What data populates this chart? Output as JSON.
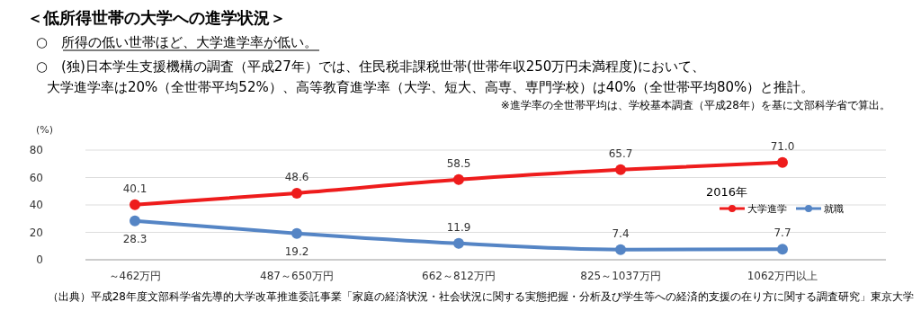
{
  "chart_data": {
    "type": "line",
    "title": "＜低所得世帯の大学への進学状況＞",
    "annotations": [
      "○　所得の低い世帯ほど、大学進学率が低い。",
      "○　(独)日本学生支援機構の調査（平成27年）では、住民税非課税世帯(世帯年収250万円未満程度)において、",
      "大学進学率は20%（全世帯平均52%）、高等教育進学率（大学、短大、高専、専門学校）は40%（全世帯平均80%）と推計。",
      "※進学率の全世帯平均は、学校基本調査（平成28年）を基に文部科学省で算出。",
      "（出典）平成28年度文部科学省先導的大学改革推進委託事業「家庭の経済状況・社会状況に関する実態把握・分析及び学生等への経済的支援の在り方に関する調査研究」東京大学"
    ],
    "ylabel": "(%)",
    "legend_title": "2016年",
    "legend": "right",
    "grid": "y",
    "marker": "circle",
    "line_style": "solid",
    "categories": [
      "～462万円",
      "487～650万円",
      "662～812万円",
      "825～1037万円",
      "1062万円以上"
    ],
    "ylim": [
      0,
      80
    ],
    "yticks": [
      0,
      20,
      40,
      60,
      80
    ],
    "series": [
      {
        "name": "大学進学",
        "color": "#ee1c1c",
        "values": [
          40.1,
          48.6,
          58.5,
          65.7,
          71.0
        ],
        "value_labels": [
          "40.1",
          "48.6",
          "58.5",
          "65.7",
          "71.0"
        ]
      },
      {
        "name": "就職",
        "color": "#5585c5",
        "values": [
          28.3,
          19.2,
          11.9,
          7.4,
          7.7
        ],
        "value_labels": [
          "28.3",
          "19.2",
          "11.9",
          "7.4",
          "7.7"
        ]
      }
    ]
  }
}
